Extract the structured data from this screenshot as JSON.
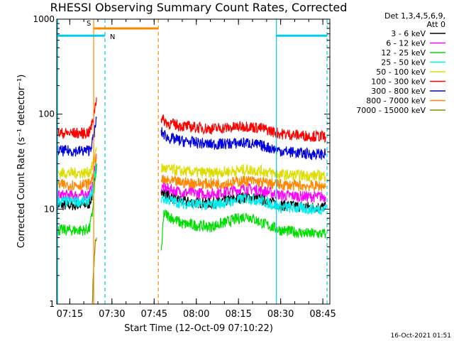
{
  "chart_data": {
    "type": "line",
    "title": "RHESSI Observing Summary Count Rates, Corrected",
    "xlabel": "Start Time (12-Oct-09 07:10:22)",
    "ylabel": "Corrected Count Rate (s⁻¹ detector⁻¹)",
    "y_scale": "log",
    "ylim": [
      1,
      1000
    ],
    "xlim": [
      "07:10:22",
      "08:47:30"
    ],
    "x_ticks": [
      "07:15",
      "07:30",
      "07:45",
      "08:00",
      "08:15",
      "08:30",
      "08:45"
    ],
    "y_ticks": [
      "1",
      "10",
      "100",
      "1000"
    ],
    "legend": {
      "header": [
        "Det 1,3,4,5,6,9,",
        "Att 0"
      ],
      "placement": "top-right-outside"
    },
    "series": [
      {
        "name": "3 - 6 keV",
        "color": "#000000",
        "segments": [
          {
            "x": [
              "07:10:22",
              "07:20:00",
              "07:22:00",
              "07:23:00",
              "07:24:30"
            ],
            "y": [
              11,
              11,
              11.5,
              14,
              30
            ]
          },
          {
            "x": [
              "07:47:30",
              "07:55:00",
              "08:05:00",
              "08:12:00",
              "08:18:00",
              "08:24:00",
              "08:30:00",
              "08:40:00",
              "08:46:00"
            ],
            "y": [
              15,
              12,
              11.5,
              12.5,
              13.5,
              12.5,
              11,
              10.5,
              10.5
            ]
          }
        ]
      },
      {
        "name": "6 - 12 keV",
        "color": "#ff00ff",
        "segments": [
          {
            "x": [
              "07:10:22",
              "07:20:00",
              "07:22:00",
              "07:23:00",
              "07:24:30"
            ],
            "y": [
              14,
              14,
              14.5,
              17,
              38
            ]
          },
          {
            "x": [
              "07:47:30",
              "07:55:00",
              "08:05:00",
              "08:12:00",
              "08:18:00",
              "08:24:00",
              "08:30:00",
              "08:40:00",
              "08:46:00"
            ],
            "y": [
              17,
              15,
              14.5,
              15.5,
              16.5,
              15.5,
              14,
              13.5,
              13.5
            ]
          }
        ]
      },
      {
        "name": "12 - 25 keV",
        "color": "#00dd00",
        "segments": [
          {
            "x": [
              "07:10:22",
              "07:20:00",
              "07:22:00",
              "07:23:00",
              "07:24:30"
            ],
            "y": [
              6,
              6,
              6.2,
              9,
              30
            ]
          },
          {
            "x": [
              "07:47:30",
              "07:48:30",
              "07:55:00",
              "08:05:00",
              "08:12:00",
              "08:18:00",
              "08:24:00",
              "08:30:00",
              "08:40:00",
              "08:46:00"
            ],
            "y": [
              3.5,
              9,
              7,
              6.5,
              7.5,
              8.5,
              7,
              6,
              5.5,
              5.5
            ]
          }
        ]
      },
      {
        "name": "25 - 50 keV",
        "color": "#00eeee",
        "segments": [
          {
            "x": [
              "07:10:22",
              "07:20:00",
              "07:22:00",
              "07:23:00",
              "07:24:30"
            ],
            "y": [
              12,
              12,
              12.5,
              15,
              32
            ]
          },
          {
            "x": [
              "07:47:30",
              "07:55:00",
              "08:05:00",
              "08:12:00",
              "08:18:00",
              "08:24:00",
              "08:30:00",
              "08:40:00",
              "08:46:00"
            ],
            "y": [
              13,
              11.5,
              11,
              12,
              13,
              12,
              10.5,
              10,
              10
            ]
          }
        ]
      },
      {
        "name": "50 - 100 keV",
        "color": "#dddd00",
        "segments": [
          {
            "x": [
              "07:10:22",
              "07:20:00",
              "07:22:00",
              "07:23:00",
              "07:24:30"
            ],
            "y": [
              24,
              24,
              24.5,
              28,
              45
            ]
          },
          {
            "x": [
              "07:47:30",
              "07:55:00",
              "08:05:00",
              "08:12:00",
              "08:18:00",
              "08:24:00",
              "08:30:00",
              "08:40:00",
              "08:46:00"
            ],
            "y": [
              27,
              25,
              24,
              25,
              26,
              25,
              23,
              22.5,
              22.5
            ]
          }
        ]
      },
      {
        "name": "100 - 300 keV",
        "color": "#ff0000",
        "segments": [
          {
            "x": [
              "07:10:22",
              "07:20:00",
              "07:22:00",
              "07:23:00",
              "07:24:00",
              "07:24:30"
            ],
            "y": [
              63,
              63,
              65,
              80,
              120,
              150
            ]
          },
          {
            "x": [
              "07:47:30",
              "07:50:00",
              "07:55:00",
              "08:05:00",
              "08:12:00",
              "08:18:00",
              "08:24:00",
              "08:30:00",
              "08:40:00",
              "08:46:00"
            ],
            "y": [
              90,
              80,
              75,
              70,
              72,
              75,
              70,
              62,
              59,
              58
            ]
          }
        ]
      },
      {
        "name": "300 - 800 keV",
        "color": "#0000dd",
        "segments": [
          {
            "x": [
              "07:10:22",
              "07:20:00",
              "07:22:00",
              "07:23:00",
              "07:24:00",
              "07:24:30"
            ],
            "y": [
              41,
              41,
              42,
              50,
              70,
              90
            ]
          },
          {
            "x": [
              "07:47:30",
              "07:50:00",
              "07:55:00",
              "08:05:00",
              "08:12:00",
              "08:18:00",
              "08:24:00",
              "08:30:00",
              "08:40:00",
              "08:46:00"
            ],
            "y": [
              65,
              56,
              52,
              48,
              49,
              50,
              46,
              41,
              38,
              38
            ]
          }
        ]
      },
      {
        "name": "800 - 7000 keV",
        "color": "#ff8800",
        "segments": [
          {
            "x": [
              "07:10:22",
              "07:20:00",
              "07:22:00",
              "07:23:00",
              "07:24:30"
            ],
            "y": [
              18,
              18,
              18.5,
              21,
              38
            ]
          },
          {
            "x": [
              "07:47:30",
              "07:55:00",
              "08:05:00",
              "08:12:00",
              "08:18:00",
              "08:24:00",
              "08:30:00",
              "08:40:00",
              "08:46:00"
            ],
            "y": [
              20,
              19,
              18.5,
              19,
              20,
              19,
              18,
              17.5,
              17.5
            ]
          }
        ]
      },
      {
        "name": "7000 - 15000 keV",
        "color": "#888800",
        "segments": [
          {
            "x": [
              "07:23:00",
              "07:23:30",
              "07:24:00",
              "07:24:30"
            ],
            "y": [
              1,
              2.5,
              4,
              5
            ]
          }
        ]
      }
    ],
    "markers": [
      {
        "label": "S",
        "color": "#ff8800",
        "start": "07:23:30",
        "end": "07:46:30",
        "y": 800,
        "style": "bar"
      },
      {
        "label": "N",
        "color": "#00ccee",
        "start": "07:10:22",
        "end": "07:27:30",
        "y": 670,
        "style": "bar"
      },
      {
        "label": "",
        "color": "#00ccee",
        "start": "08:28:30",
        "end": "08:46:30",
        "y": 670,
        "style": "bar"
      }
    ],
    "vlines": [
      {
        "x": "07:10:40",
        "color": "#00ccee",
        "style": "solid"
      },
      {
        "x": "07:23:30",
        "color": "#ff8800",
        "style": "solid"
      },
      {
        "x": "07:27:30",
        "color": "#00ccee",
        "style": "dashed"
      },
      {
        "x": "07:46:30",
        "color": "#ff8800",
        "style": "dashed"
      },
      {
        "x": "08:28:30",
        "color": "#00ccee",
        "style": "solid"
      },
      {
        "x": "08:46:30",
        "color": "#00ccee",
        "style": "dashed"
      }
    ]
  },
  "footer": {
    "timestamp": "16-Oct-2021 01:51"
  }
}
